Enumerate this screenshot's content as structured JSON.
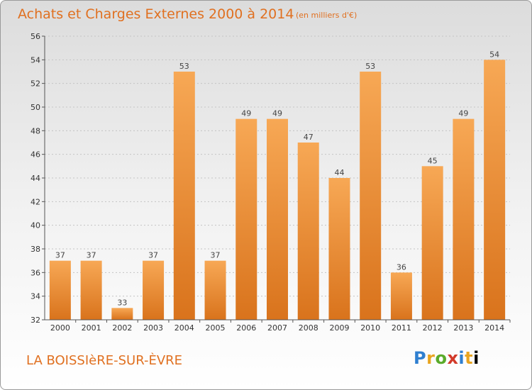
{
  "header": {
    "title": "Achats et Charges Externes 2000 à 2014",
    "subtitle": "(en milliers d'€)"
  },
  "footer": {
    "place": "LA BOISSIèRE-SUR-ÈVRE",
    "logo": "Proxiti"
  },
  "colors": {
    "bar_light": "#f7a855",
    "bar_dark": "#d9731c",
    "accent": "#e07020"
  },
  "chart_data": {
    "type": "bar",
    "title": "Achats et Charges Externes 2000 à 2014",
    "subtitle": "(en milliers d'€)",
    "xlabel": "",
    "ylabel": "",
    "categories": [
      "2000",
      "2001",
      "2002",
      "2003",
      "2004",
      "2005",
      "2006",
      "2007",
      "2008",
      "2009",
      "2010",
      "2011",
      "2012",
      "2013",
      "2014"
    ],
    "values": [
      37,
      37,
      33,
      37,
      53,
      37,
      49,
      49,
      47,
      44,
      53,
      36,
      45,
      49,
      54
    ],
    "ylim": [
      32,
      56
    ],
    "yticks": [
      32,
      34,
      36,
      38,
      40,
      42,
      44,
      46,
      48,
      50,
      52,
      54,
      56
    ],
    "grid": true,
    "legend": "none"
  }
}
